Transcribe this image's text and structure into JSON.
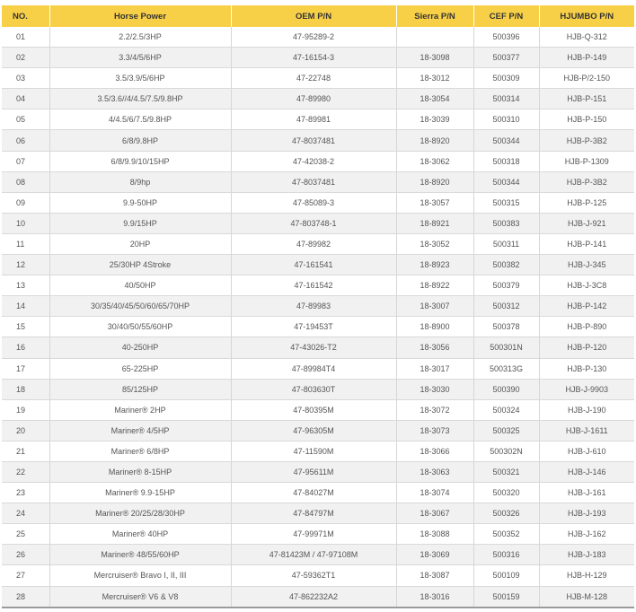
{
  "table": {
    "headers": [
      "NO.",
      "Horse Power",
      "OEM P/N",
      "Sierra P/N",
      "CEF P/N",
      "HJUMBO P/N"
    ],
    "header_color": "#f8d048",
    "rows": [
      [
        "01",
        "2.2/2.5/3HP",
        "47-95289-2",
        "",
        "500396",
        "HJB-Q-312"
      ],
      [
        "02",
        "3.3/4/5/6HP",
        "47-16154-3",
        "18-3098",
        "500377",
        "HJB-P-149"
      ],
      [
        "03",
        "3.5/3.9/5/6HP",
        "47-22748",
        "18-3012",
        "500309",
        "HJB-P/2-150"
      ],
      [
        "04",
        "3.5/3.6//4/4.5/7.5/9.8HP",
        "47-89980",
        "18-3054",
        "500314",
        "HJB-P-151"
      ],
      [
        "05",
        "4/4.5/6/7.5/9.8HP",
        "47-89981",
        "18-3039",
        "500310",
        "HJB-P-150"
      ],
      [
        "06",
        "6/8/9.8HP",
        "47-8037481",
        "18-8920",
        "500344",
        "HJB-P-3B2"
      ],
      [
        "07",
        "6/8/9.9/10/15HP",
        "47-42038-2",
        "18-3062",
        "500318",
        "HJB-P-1309"
      ],
      [
        "08",
        "8/9hp",
        "47-8037481",
        "18-8920",
        "500344",
        "HJB-P-3B2"
      ],
      [
        "09",
        "9.9-50HP",
        "47-85089-3",
        "18-3057",
        "500315",
        "HJB-P-125"
      ],
      [
        "10",
        "9.9/15HP",
        "47-803748-1",
        "18-8921",
        "500383",
        "HJB-J-921"
      ],
      [
        "11",
        "20HP",
        "47-89982",
        "18-3052",
        "500311",
        "HJB-P-141"
      ],
      [
        "12",
        "25/30HP 4Stroke",
        "47-161541",
        "18-8923",
        "500382",
        "HJB-J-345"
      ],
      [
        "13",
        "40/50HP",
        "47-161542",
        "18-8922",
        "500379",
        "HJB-J-3C8"
      ],
      [
        "14",
        "30/35/40/45/50/60/65/70HP",
        "47-89983",
        "18-3007",
        "500312",
        "HJB-P-142"
      ],
      [
        "15",
        "30/40/50/55/60HP",
        "47-19453T",
        "18-8900",
        "500378",
        "HJB-P-890"
      ],
      [
        "16",
        "40-250HP",
        "47-43026-T2",
        "18-3056",
        "500301N",
        "HJB-P-120"
      ],
      [
        "17",
        "65-225HP",
        "47-89984T4",
        "18-3017",
        "500313G",
        "HJB-P-130"
      ],
      [
        "18",
        "85/125HP",
        "47-803630T",
        "18-3030",
        "500390",
        "HJB-J-9903"
      ],
      [
        "19",
        "Mariner® 2HP",
        "47-80395M",
        "18-3072",
        "500324",
        "HJB-J-190"
      ],
      [
        "20",
        "Mariner® 4/5HP",
        "47-96305M",
        "18-3073",
        "500325",
        "HJB-J-1611"
      ],
      [
        "21",
        "Mariner® 6/8HP",
        "47-11590M",
        "18-3066",
        "500302N",
        "HJB-J-610"
      ],
      [
        "22",
        "Mariner® 8-15HP",
        "47-95611M",
        "18-3063",
        "500321",
        "HJB-J-146"
      ],
      [
        "23",
        "Mariner® 9.9-15HP",
        "47-84027M",
        "18-3074",
        "500320",
        "HJB-J-161"
      ],
      [
        "24",
        "Mariner® 20/25/28/30HP",
        "47-84797M",
        "18-3067",
        "500326",
        "HJB-J-193"
      ],
      [
        "25",
        "Mariner® 40HP",
        "47-99971M",
        "18-3088",
        "500352",
        "HJB-J-162"
      ],
      [
        "26",
        "Mariner® 48/55/60HP",
        "47-81423M / 47-97108M",
        "18-3069",
        "500316",
        "HJB-J-183"
      ],
      [
        "27",
        "Mercruiser® Bravo I, II, III",
        "47-59362T1",
        "18-3087",
        "500109",
        "HJB-H-129"
      ],
      [
        "28",
        "Mercruiser® V6 & V8",
        "47-862232A2",
        "18-3016",
        "500159",
        "HJB-M-128"
      ]
    ]
  }
}
